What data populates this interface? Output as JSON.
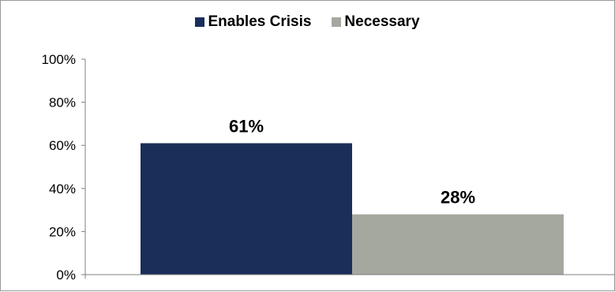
{
  "chart_data": {
    "type": "bar",
    "title": "",
    "xlabel": "",
    "ylabel": "",
    "ylim": [
      0,
      100
    ],
    "y_ticks": [
      "0%",
      "20%",
      "40%",
      "60%",
      "80%",
      "100%"
    ],
    "y_tick_values": [
      0,
      20,
      40,
      60,
      80,
      100
    ],
    "grid": false,
    "legend_position": "top",
    "series": [
      {
        "name": "Enables Crisis",
        "values": [
          61
        ],
        "label": "61%",
        "color": "#1a2e5a"
      },
      {
        "name": "Necessary",
        "values": [
          28
        ],
        "label": "28%",
        "color": "#a5a89f"
      }
    ]
  }
}
